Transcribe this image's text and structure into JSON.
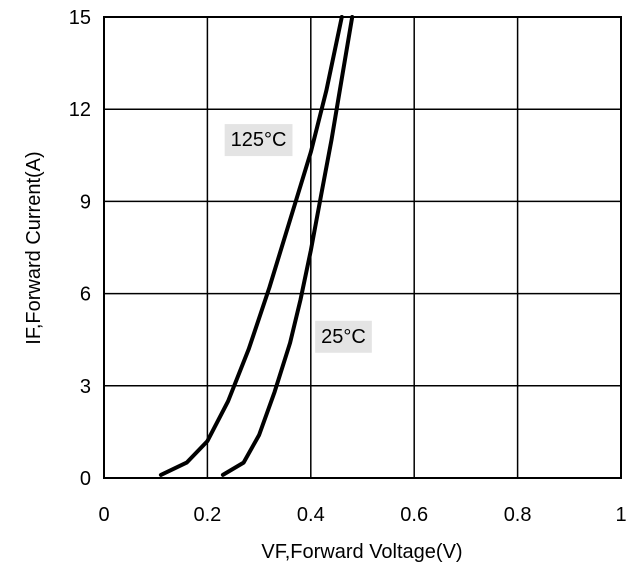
{
  "chart_data": {
    "type": "line",
    "xlabel": "VF,Forward Voltage(V)",
    "ylabel": "IF,Forward Current(A)",
    "xlim": [
      0,
      1
    ],
    "ylim": [
      0,
      15
    ],
    "x_ticks": [
      "0",
      "0.2",
      "0.4",
      "0.6",
      "0.8",
      "1"
    ],
    "y_ticks": [
      "0",
      "3",
      "6",
      "9",
      "12",
      "15"
    ],
    "grid": true,
    "series": [
      {
        "name": "125°C",
        "points": [
          [
            0.11,
            0.1
          ],
          [
            0.16,
            0.5
          ],
          [
            0.2,
            1.2
          ],
          [
            0.24,
            2.5
          ],
          [
            0.28,
            4.2
          ],
          [
            0.32,
            6.2
          ],
          [
            0.36,
            8.4
          ],
          [
            0.4,
            10.6
          ],
          [
            0.43,
            12.6
          ],
          [
            0.46,
            15.0
          ]
        ]
      },
      {
        "name": "25°C",
        "points": [
          [
            0.23,
            0.1
          ],
          [
            0.27,
            0.5
          ],
          [
            0.3,
            1.4
          ],
          [
            0.33,
            2.8
          ],
          [
            0.36,
            4.4
          ],
          [
            0.38,
            5.8
          ],
          [
            0.4,
            7.4
          ],
          [
            0.42,
            9.2
          ],
          [
            0.44,
            11.0
          ],
          [
            0.46,
            13.0
          ],
          [
            0.48,
            15.0
          ]
        ]
      }
    ],
    "annotations": [
      {
        "text": "125°C",
        "x": 0.245,
        "y": 10.8
      },
      {
        "text": "25°C",
        "x": 0.42,
        "y": 4.4
      }
    ]
  }
}
